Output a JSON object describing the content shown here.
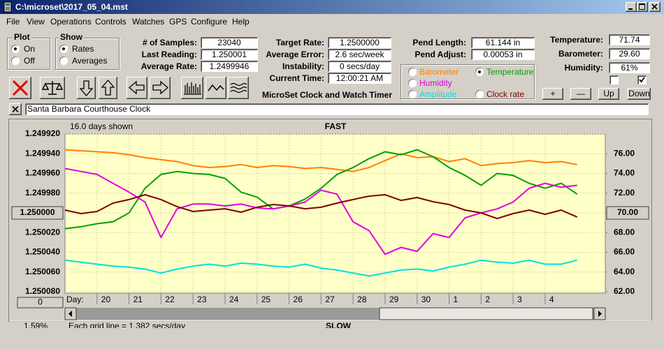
{
  "window": {
    "title": "C:\\microset\\2017_05_04.mst"
  },
  "menu": [
    "File",
    "View",
    "Operations",
    "Controls",
    "Watches",
    "GPS",
    "Configure",
    "Help"
  ],
  "plot_group": {
    "title": "Plot",
    "options": [
      "On",
      "Off"
    ],
    "selected": 0
  },
  "show_group": {
    "title": "Show",
    "options": [
      "Rates",
      "Averages"
    ],
    "selected": 0
  },
  "readouts": [
    {
      "label": "# of Samples:",
      "value": "23040"
    },
    {
      "label": "Last Reading:",
      "value": "1.250001"
    },
    {
      "label": "Average Rate:",
      "value": "1.2499946"
    },
    {
      "label": "Target Rate:",
      "value": "1.2500000"
    },
    {
      "label": "Average Error:",
      "value": "2.6 sec/week"
    },
    {
      "label": "Instability:",
      "value": "0 secs/day"
    },
    {
      "label": "Current Time:",
      "value": "12:00:21 AM"
    },
    {
      "label": "Pend Length:",
      "value": "61.144 in"
    },
    {
      "label": "Pend Adjust:",
      "value": "0.00053 in"
    },
    {
      "label": "Temperature:",
      "value": "71.74"
    },
    {
      "label": "Barometer:",
      "value": "29.60"
    },
    {
      "label": "Humidity:",
      "value": "61%"
    }
  ],
  "scale_buttons": [
    "+",
    "—",
    "Up",
    "Down"
  ],
  "app_name": "MicroSet Clock and Watch Timer",
  "clock_name": "Santa Barbara Courthouse Clock",
  "chart_data": {
    "type": "line",
    "days_shown": "16.0 days shown",
    "top_label": "FAST",
    "bottom_label": "SLOW",
    "x_label": "Day:",
    "footer": "Each grid line = 1.382 secs/day",
    "percent": "1.59%",
    "offset_button": "0",
    "grid": true,
    "xlim": [
      0,
      16.88
    ],
    "xticks": [
      {
        "value": 1,
        "label": "20"
      },
      {
        "value": 2,
        "label": "21"
      },
      {
        "value": 3,
        "label": "22"
      },
      {
        "value": 4,
        "label": "23"
      },
      {
        "value": 5,
        "label": "24"
      },
      {
        "value": 6,
        "label": "25"
      },
      {
        "value": 7,
        "label": "26"
      },
      {
        "value": 8,
        "label": "27"
      },
      {
        "value": 9,
        "label": "28"
      },
      {
        "value": 10,
        "label": "29"
      },
      {
        "value": 11,
        "label": "30"
      },
      {
        "value": 12,
        "label": "1"
      },
      {
        "value": 13,
        "label": "2"
      },
      {
        "value": 14,
        "label": "3"
      },
      {
        "value": 15,
        "label": "4"
      }
    ],
    "ylim": [
      1.25008,
      1.24992
    ],
    "yticks": [
      {
        "value": 1.24992,
        "label": "1.249920"
      },
      {
        "value": 1.24994,
        "label": "1.249940"
      },
      {
        "value": 1.24996,
        "label": "1.249960"
      },
      {
        "value": 1.24998,
        "label": "1.249980"
      },
      {
        "value": 1.25,
        "label": "1.250000"
      },
      {
        "value": 1.25002,
        "label": "1.250020"
      },
      {
        "value": 1.25004,
        "label": "1.250040"
      },
      {
        "value": 1.25006,
        "label": "1.250060"
      },
      {
        "value": 1.25008,
        "label": "1.250080"
      }
    ],
    "y2lim": [
      62,
      78
    ],
    "y2ticks": [
      {
        "value": 76,
        "label": "76.00"
      },
      {
        "value": 74,
        "label": "74.00"
      },
      {
        "value": 72,
        "label": "72.00"
      },
      {
        "value": 70,
        "label": "70.00"
      },
      {
        "value": 68,
        "label": "68.00"
      },
      {
        "value": 66,
        "label": "66.00"
      },
      {
        "value": 64,
        "label": "64.00"
      },
      {
        "value": 62,
        "label": "62.00"
      }
    ],
    "x": [
      0,
      0.5,
      1,
      1.5,
      2,
      2.5,
      3,
      3.5,
      4,
      4.5,
      5,
      5.5,
      6,
      6.5,
      7,
      7.5,
      8,
      8.5,
      9,
      9.5,
      10,
      10.5,
      11,
      11.5,
      12,
      12.5,
      13,
      13.5,
      14,
      14.5,
      15,
      15.5,
      16
    ],
    "series": [
      {
        "name": "Barometer",
        "color": "#ff8000",
        "axis": "y2",
        "selected": false,
        "values": [
          76.4,
          76.3,
          76.2,
          76.1,
          75.9,
          75.6,
          75.4,
          75.2,
          74.8,
          74.6,
          74.7,
          74.9,
          74.6,
          74.8,
          74.7,
          74.5,
          74.6,
          74.4,
          74.2,
          74.6,
          75.3,
          76.0,
          75.6,
          75.7,
          75.2,
          75.5,
          74.8,
          75.0,
          75.1,
          75.3,
          75.1,
          75.2,
          74.9
        ]
      },
      {
        "name": "Temperature",
        "color": "#00a000",
        "axis": "y2",
        "selected": true,
        "values": [
          68.4,
          68.6,
          68.9,
          69.1,
          70.0,
          72.5,
          73.9,
          74.2,
          74.0,
          73.9,
          73.5,
          72.1,
          71.6,
          70.4,
          70.7,
          71.4,
          72.5,
          73.9,
          74.6,
          75.5,
          76.2,
          75.9,
          76.4,
          75.7,
          74.6,
          73.8,
          72.8,
          74.0,
          73.8,
          73.0,
          72.5,
          73.0,
          71.9
        ]
      },
      {
        "name": "Humidity",
        "color": "#e000e0",
        "axis": "y2",
        "selected": false,
        "values": [
          74.5,
          74.2,
          73.9,
          73.0,
          72.1,
          71.1,
          67.5,
          70.4,
          70.9,
          70.9,
          70.7,
          70.9,
          70.5,
          70.4,
          70.7,
          71.1,
          72.3,
          71.9,
          69.1,
          68.2,
          65.8,
          66.5,
          66.1,
          67.9,
          67.5,
          69.5,
          70.0,
          70.4,
          71.1,
          72.5,
          73.0,
          72.6,
          72.8
        ]
      },
      {
        "name": "Amplitude",
        "color": "#00e0e0",
        "axis": "y2",
        "selected": false,
        "values": [
          65.2,
          65.0,
          64.8,
          64.6,
          64.5,
          64.3,
          63.9,
          64.3,
          64.6,
          64.8,
          64.6,
          64.9,
          64.8,
          64.6,
          64.5,
          64.8,
          64.4,
          64.2,
          63.9,
          63.6,
          63.9,
          64.2,
          64.3,
          64.1,
          64.5,
          64.8,
          65.2,
          65.0,
          64.9,
          65.2,
          64.8,
          64.8,
          65.2
        ]
      },
      {
        "name": "Clock rate",
        "color": "#800000",
        "selected": false,
        "values": [
          1.2499972,
          1.2500007,
          1.2499986,
          1.2499901,
          1.2499865,
          1.2499816,
          1.2499865,
          1.2499936,
          1.2499986,
          1.2499972,
          1.2499958,
          1.2499993,
          1.2499943,
          1.2499915,
          1.2499929,
          1.2499958,
          1.2499943,
          1.2499901,
          1.2499865,
          1.249983,
          1.2499816,
          1.2499873,
          1.2499844,
          1.2499887,
          1.2499915,
          1.2499972,
          1.25,
          1.2500057,
          1.2500007,
          1.2499972,
          1.2500014,
          1.2499972,
          1.2500042
        ]
      }
    ]
  }
}
